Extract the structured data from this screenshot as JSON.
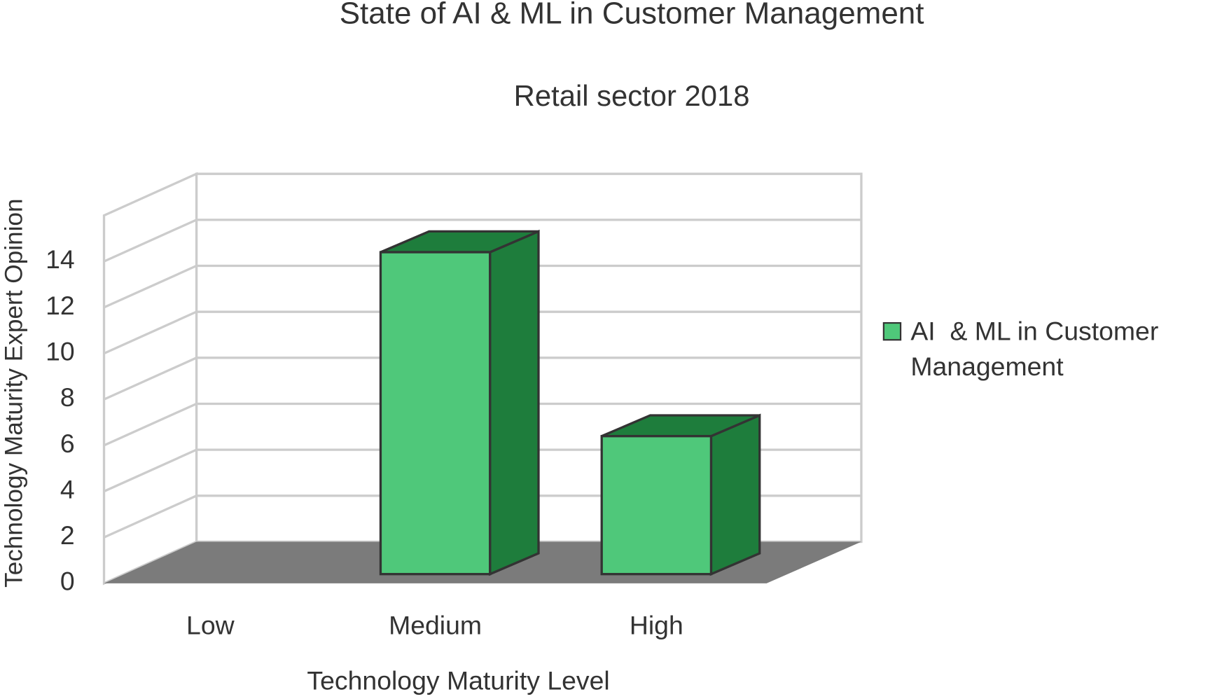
{
  "chart_data": {
    "type": "bar3d",
    "title": "State of AI & ML in Customer Management",
    "subtitle": "Retail sector 2018",
    "x_label": "Technology Maturity Level",
    "y_label": "Technology Maturity Expert Opinion",
    "categories": [
      "Low",
      "Medium",
      "High"
    ],
    "series": [
      {
        "name": "AI  & ML in Customer Management",
        "color": "#4fc87a",
        "values": [
          0,
          14,
          6
        ]
      }
    ],
    "ylim": [
      0,
      16
    ],
    "yticks": [
      0,
      2,
      4,
      6,
      8,
      10,
      12,
      14
    ],
    "grid": true
  }
}
